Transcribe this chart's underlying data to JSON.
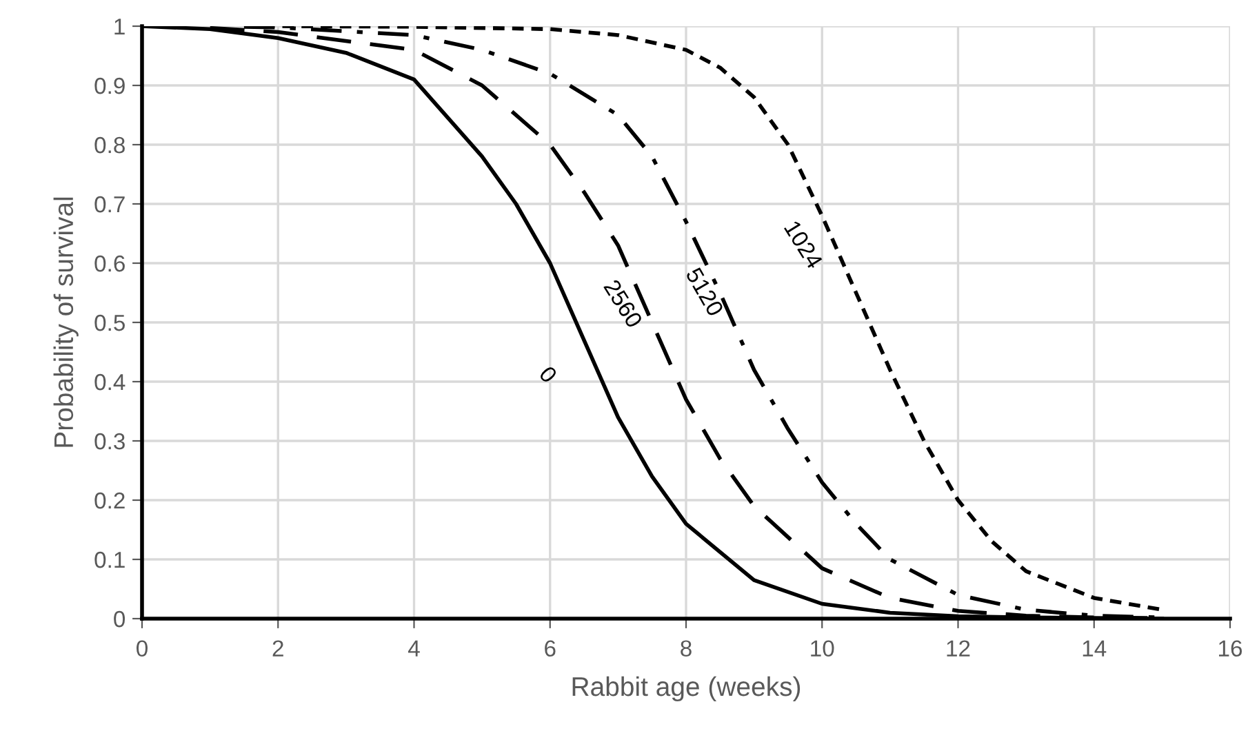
{
  "chart_data": {
    "type": "line",
    "xlabel": "Rabbit age (weeks)",
    "ylabel": "Probability of survival",
    "xlim": [
      0,
      16
    ],
    "xticks": [
      0,
      2,
      4,
      6,
      8,
      10,
      12,
      14,
      16
    ],
    "ylim": [
      0,
      1
    ],
    "yticks": [
      0,
      0.1,
      0.2,
      0.3,
      0.4,
      0.5,
      0.6,
      0.7,
      0.8,
      0.9,
      1
    ],
    "grid": true,
    "legend": false,
    "marker": "none",
    "series": [
      {
        "name": "0",
        "color": "#000000",
        "line_style": "solid",
        "x": [
          0,
          1,
          2,
          3,
          4,
          5,
          5.5,
          6,
          6.5,
          7,
          7.5,
          8,
          9,
          10,
          11,
          12,
          13,
          14,
          15
        ],
        "values": [
          1,
          0.995,
          0.98,
          0.955,
          0.91,
          0.78,
          0.7,
          0.6,
          0.47,
          0.34,
          0.24,
          0.16,
          0.065,
          0.025,
          0.01,
          0.004,
          0.002,
          0.001,
          0
        ]
      },
      {
        "name": "2560",
        "color": "#000000",
        "line_style": "dashed",
        "x": [
          1,
          2,
          4,
          5,
          6,
          6.5,
          7,
          7.5,
          8,
          8.5,
          9,
          10,
          11,
          12,
          13,
          14,
          15
        ],
        "values": [
          0.997,
          0.99,
          0.96,
          0.9,
          0.8,
          0.72,
          0.63,
          0.5,
          0.37,
          0.27,
          0.19,
          0.085,
          0.035,
          0.013,
          0.005,
          0.002,
          0.001
        ]
      },
      {
        "name": "5120",
        "color": "#000000",
        "line_style": "dashdot",
        "x": [
          1.5,
          2,
          4,
          5,
          6,
          7,
          7.5,
          8,
          8.5,
          9,
          9.5,
          10,
          10.5,
          11,
          12,
          13,
          14,
          15
        ],
        "values": [
          0.999,
          0.998,
          0.985,
          0.96,
          0.92,
          0.85,
          0.78,
          0.67,
          0.55,
          0.42,
          0.32,
          0.23,
          0.16,
          0.1,
          0.04,
          0.015,
          0.005,
          0.002
        ]
      },
      {
        "name": "1024",
        "color": "#000000",
        "line_style": "dotted",
        "x": [
          1.5,
          2,
          4,
          6,
          7,
          8,
          8.5,
          9,
          9.5,
          10,
          10.5,
          11,
          11.5,
          12,
          12.5,
          13,
          14,
          15
        ],
        "values": [
          1,
          1,
          0.999,
          0.995,
          0.985,
          0.96,
          0.93,
          0.88,
          0.8,
          0.68,
          0.55,
          0.42,
          0.3,
          0.2,
          0.13,
          0.08,
          0.035,
          0.015
        ]
      }
    ]
  }
}
